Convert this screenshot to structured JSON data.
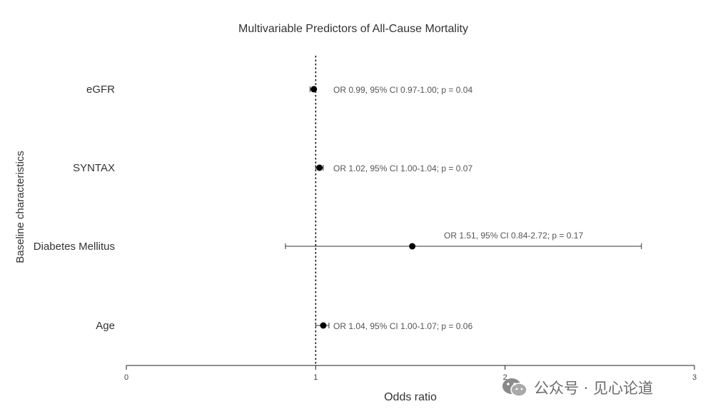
{
  "chart_data": {
    "type": "forest",
    "title": "Multivariable Predictors of All-Cause Mortality",
    "xlabel": "Odds ratio",
    "ylabel": "Baseline characteristics",
    "xlim": [
      0,
      3
    ],
    "xticks": [
      0,
      1,
      2,
      3
    ],
    "reference_line": 1,
    "rows": [
      {
        "label": "eGFR",
        "or": 0.99,
        "ci": [
          0.97,
          1.0
        ],
        "annotation": "OR 0.99, 95% CI 0.97-1.00; p = 0.04"
      },
      {
        "label": "SYNTAX",
        "or": 1.02,
        "ci": [
          1.0,
          1.04
        ],
        "annotation": "OR 1.02, 95% CI 1.00-1.04; p = 0.07"
      },
      {
        "label": "Diabetes Mellitus",
        "or": 1.51,
        "ci": [
          0.84,
          2.72
        ],
        "annotation": "OR 1.51, 95% CI 0.84-2.72; p = 0.17"
      },
      {
        "label": "Age",
        "or": 1.04,
        "ci": [
          1.0,
          1.07
        ],
        "annotation": "OR 1.04, 95% CI 1.00-1.07; p = 0.06"
      }
    ]
  },
  "watermark": {
    "text": "公众号 · 见心论道",
    "icon": "wechat-icon"
  }
}
